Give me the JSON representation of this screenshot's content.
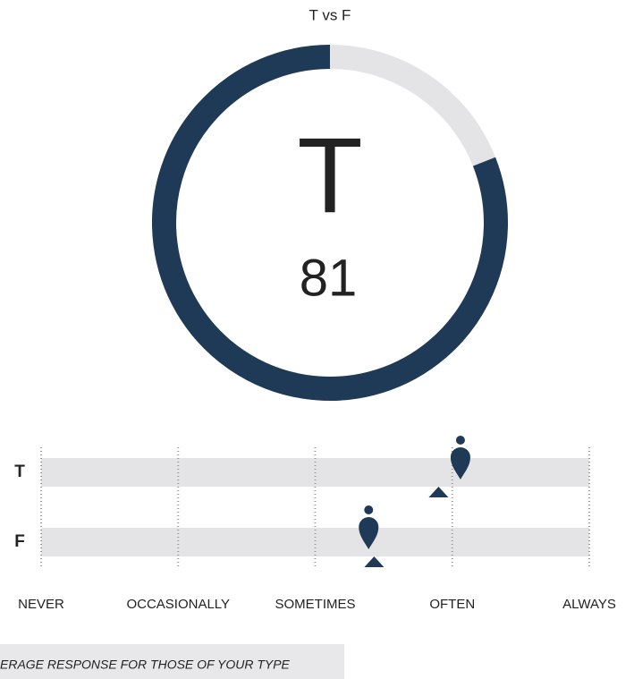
{
  "chart_data": [
    {
      "type": "donut",
      "title": "T vs F",
      "label": "T",
      "value": 81,
      "color": "#1f3a56",
      "track_color": "#e4e4e6"
    },
    {
      "type": "dot",
      "rows": [
        "T",
        "F"
      ],
      "scores": [
        3.06,
        2.39
      ],
      "averages": [
        2.9,
        2.43
      ],
      "xlim": [
        0,
        4
      ],
      "xticks": [
        {
          "value": 0,
          "label": "NEVER"
        },
        {
          "value": 1,
          "label": "OCCASIONALLY"
        },
        {
          "value": 2,
          "label": "SOMETIMES"
        },
        {
          "value": 3,
          "label": "OFTEN"
        },
        {
          "value": 4,
          "label": "ALWAYS"
        }
      ],
      "color": "#1f3a56",
      "band_color": "#e4e4e6",
      "legend_note": "ERAGE RESPONSE FOR THOSE OF YOUR TYPE"
    }
  ]
}
